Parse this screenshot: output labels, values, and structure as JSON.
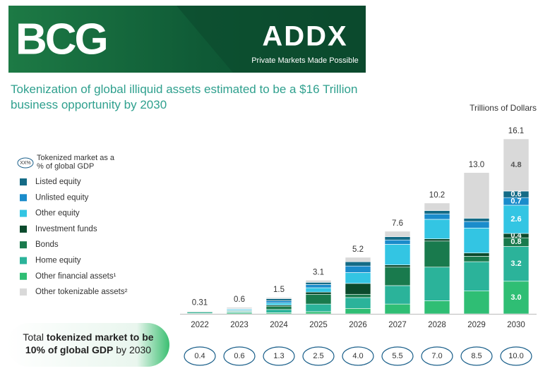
{
  "header": {
    "left_logo": "BCG",
    "right_logo": "ADDX",
    "tagline": "Private Markets Made Possible"
  },
  "chart_data": {
    "type": "stacked-bar",
    "title": "Tokenization of global illiquid assets estimated to be a $16 Trillion business opportunity by 2030",
    "unit_label": "Trillions of Dollars",
    "categories": [
      "2022",
      "2023",
      "2024",
      "2025",
      "2026",
      "2027",
      "2028",
      "2029",
      "2030"
    ],
    "series": [
      {
        "name": "Listed equity",
        "color": "#146b86",
        "values": [
          0.01,
          0.05,
          0.2,
          0.2,
          0.4,
          0.3,
          0.3,
          0.3,
          0.6
        ],
        "value_labels": [
          null,
          null,
          null,
          null,
          null,
          null,
          null,
          null,
          "0.6"
        ]
      },
      {
        "name": "Unlisted equity",
        "color": "#1a8ccb",
        "values": [
          0.02,
          0.05,
          0.2,
          0.3,
          0.6,
          0.4,
          0.5,
          0.6,
          0.7
        ],
        "value_labels": [
          null,
          null,
          null,
          null,
          null,
          null,
          null,
          null,
          "0.7"
        ]
      },
      {
        "name": "Other equity",
        "color": "#33c5e3",
        "values": [
          0.04,
          0.1,
          0.2,
          0.4,
          1.0,
          1.9,
          1.8,
          2.3,
          2.6
        ],
        "value_labels": [
          null,
          null,
          null,
          null,
          null,
          null,
          null,
          null,
          "2.6"
        ]
      },
      {
        "name": "Investment funds",
        "color": "#0b4a2c",
        "values": [
          0.02,
          0.05,
          0.1,
          0.2,
          1.0,
          0.2,
          0.2,
          0.3,
          0.4
        ],
        "value_labels": [
          null,
          null,
          null,
          null,
          null,
          null,
          null,
          null,
          "0.4"
        ]
      },
      {
        "name": "Bonds",
        "color": "#197a4d",
        "values": [
          0.06,
          0.05,
          0.3,
          0.9,
          0.3,
          1.7,
          2.4,
          0.5,
          0.8
        ],
        "value_labels": [
          null,
          null,
          null,
          null,
          null,
          null,
          null,
          null,
          "0.8"
        ]
      },
      {
        "name": "Home equity",
        "color": "#2bb39a",
        "values": [
          0.1,
          0.1,
          0.3,
          0.7,
          1.0,
          1.7,
          3.1,
          2.7,
          3.2
        ],
        "value_labels": [
          null,
          null,
          null,
          null,
          null,
          null,
          null,
          null,
          "3.2"
        ]
      },
      {
        "name": "Other financial assets¹",
        "color": "#2fbe74",
        "values": [
          0.05,
          0.1,
          0.1,
          0.2,
          0.5,
          0.9,
          1.2,
          2.1,
          3.0
        ],
        "value_labels": [
          null,
          null,
          null,
          null,
          null,
          null,
          null,
          null,
          "3.0"
        ]
      },
      {
        "name": "Other tokenizable assets²",
        "color": "#d9d9d9",
        "values": [
          0.01,
          0.1,
          0.1,
          0.2,
          0.4,
          0.5,
          0.7,
          4.2,
          4.8
        ],
        "value_labels": [
          null,
          null,
          null,
          null,
          null,
          null,
          null,
          null,
          "4.8"
        ]
      }
    ],
    "totals": [
      0.31,
      0.6,
      1.5,
      3.1,
      5.2,
      7.6,
      10.2,
      13.0,
      16.1
    ],
    "total_labels": [
      "0.31",
      "0.6",
      "1.5",
      "3.1",
      "5.2",
      "7.6",
      "10.2",
      "13.0",
      "16.1"
    ],
    "gdp_legend_icon": "XX%",
    "gdp_legend": "Tokenized market as a % of global GDP",
    "gdp_percent": [
      0.4,
      0.6,
      1.3,
      2.5,
      4.0,
      5.5,
      7.0,
      8.5,
      10.0
    ],
    "gdp_percent_labels": [
      "0.4",
      "0.6",
      "1.3",
      "2.5",
      "4.0",
      "5.5",
      "7.0",
      "8.5",
      "10.0"
    ],
    "callout": {
      "line1_plain": "Total ",
      "line1_bold": "tokenized market to be",
      "line2_bold": "10% of global GDP",
      "line2_plain": " by 2030"
    }
  }
}
